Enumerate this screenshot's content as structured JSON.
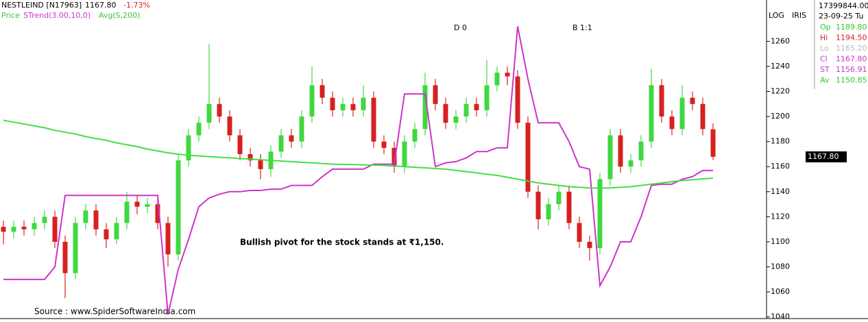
{
  "chart_data": {
    "type": "candlestick",
    "title": "NESTLEIND [N17963]",
    "last_price": "1167.80",
    "change": "-1.73%",
    "legend": [
      "Price",
      "STrend(3.00,10,0)",
      "Avg(S,200)"
    ],
    "markers": [
      "D 0",
      "B 1:1"
    ],
    "scale_labels": [
      "LOG",
      "IRIS"
    ],
    "annotation": "Bullish pivot for the stock stands at ₹1,150.",
    "source": "Source : www.SpiderSoftwareIndia.com",
    "price_tag": "1167.80",
    "info_panel": {
      "volume": "17399844.00",
      "date": "23-09-25 Tu",
      "rows": [
        [
          "Op",
          "1189.80"
        ],
        [
          "Hi",
          "1194.50"
        ],
        [
          "Lo",
          "1165.20"
        ],
        [
          "Cl",
          "1167.80"
        ],
        [
          "ST",
          "1156.91"
        ],
        [
          "Av",
          "1150.85"
        ]
      ]
    },
    "ylim": [
      1036,
      1293
    ],
    "yticks": [
      1040,
      1060,
      1080,
      1100,
      1120,
      1140,
      1160,
      1180,
      1200,
      1220,
      1240,
      1260
    ],
    "up_color": "#3fd83f",
    "down_color": "#d82020",
    "open": [
      1112,
      1108,
      1112,
      1110,
      1115,
      1120,
      1100,
      1075,
      1115,
      1125,
      1110,
      1102,
      1115,
      1132,
      1128,
      1130,
      1115,
      1090,
      1165,
      1185,
      1195,
      1210,
      1200,
      1185,
      1170,
      1165,
      1158,
      1172,
      1185,
      1180,
      1200,
      1225,
      1215,
      1205,
      1210,
      1205,
      1215,
      1180,
      1175,
      1160,
      1180,
      1190,
      1225,
      1210,
      1195,
      1200,
      1210,
      1205,
      1225,
      1235,
      1232,
      1195,
      1140,
      1118,
      1130,
      1140,
      1115,
      1100,
      1095,
      1150,
      1185,
      1160,
      1165,
      1180,
      1225,
      1200,
      1190,
      1215,
      1210,
      1189.8
    ],
    "high": [
      1117,
      1117,
      1117,
      1120,
      1125,
      1125,
      1105,
      1120,
      1130,
      1130,
      1115,
      1120,
      1140,
      1137,
      1135,
      1135,
      1120,
      1170,
      1190,
      1200,
      1258,
      1215,
      1205,
      1190,
      1175,
      1170,
      1177,
      1190,
      1190,
      1205,
      1240,
      1230,
      1220,
      1215,
      1215,
      1225,
      1220,
      1185,
      1180,
      1185,
      1195,
      1235,
      1230,
      1215,
      1205,
      1215,
      1215,
      1245,
      1240,
      1240,
      1237,
      1200,
      1145,
      1135,
      1145,
      1145,
      1120,
      1105,
      1155,
      1190,
      1190,
      1170,
      1185,
      1238,
      1230,
      1205,
      1225,
      1220,
      1215,
      1194.5
    ],
    "low": [
      1098,
      1103,
      1105,
      1105,
      1110,
      1095,
      1055,
      1070,
      1110,
      1105,
      1095,
      1098,
      1110,
      1122,
      1123,
      1110,
      1080,
      1085,
      1160,
      1180,
      1190,
      1195,
      1180,
      1165,
      1160,
      1150,
      1152,
      1167,
      1175,
      1175,
      1195,
      1210,
      1200,
      1200,
      1200,
      1200,
      1175,
      1170,
      1155,
      1155,
      1175,
      1185,
      1205,
      1190,
      1190,
      1195,
      1200,
      1200,
      1220,
      1225,
      1190,
      1135,
      1110,
      1113,
      1125,
      1110,
      1095,
      1085,
      1090,
      1145,
      1155,
      1155,
      1160,
      1175,
      1195,
      1185,
      1185,
      1205,
      1185,
      1165.2
    ],
    "close": [
      1108,
      1112,
      1110,
      1115,
      1120,
      1100,
      1075,
      1115,
      1125,
      1110,
      1102,
      1115,
      1132,
      1128,
      1130,
      1115,
      1090,
      1165,
      1185,
      1195,
      1210,
      1200,
      1185,
      1170,
      1165,
      1158,
      1172,
      1185,
      1180,
      1200,
      1225,
      1215,
      1205,
      1210,
      1205,
      1215,
      1180,
      1175,
      1160,
      1180,
      1190,
      1225,
      1210,
      1195,
      1200,
      1210,
      1205,
      1225,
      1235,
      1232,
      1195,
      1140,
      1118,
      1130,
      1140,
      1115,
      1100,
      1095,
      1150,
      1185,
      1160,
      1165,
      1180,
      1225,
      1200,
      1190,
      1215,
      1210,
      1190,
      1167.8
    ],
    "series": [
      {
        "name": "STrend(3.00,10,0)",
        "color": "#cc33cc",
        "values": [
          1070,
          1070,
          1070,
          1070,
          1070,
          1080,
          1137,
          1137,
          1137,
          1137,
          1137,
          1137,
          1137,
          1137,
          1137,
          1137,
          1042,
          1078,
          1102,
          1128,
          1135,
          1138,
          1140,
          1140,
          1141,
          1141,
          1142,
          1142,
          1145,
          1145,
          1145,
          1152,
          1158,
          1158,
          1158,
          1158,
          1162,
          1162,
          1162,
          1218,
          1218,
          1218,
          1160,
          1163,
          1164,
          1167,
          1172,
          1172,
          1175,
          1175,
          1272,
          1230,
          1195,
          1195,
          1195,
          1180,
          1160,
          1158,
          1065,
          1080,
          1100,
          1100,
          1120,
          1145,
          1146,
          1146,
          1150,
          1152,
          1157,
          1156.91
        ]
      },
      {
        "name": "Avg(S,200)",
        "color": "#44dd44",
        "values": [
          1197,
          1195.5,
          1194,
          1192.5,
          1191,
          1189,
          1187.5,
          1186,
          1184,
          1182.5,
          1181,
          1179,
          1177.5,
          1176,
          1174,
          1172.5,
          1171,
          1170,
          1169,
          1168.5,
          1168,
          1167.5,
          1167,
          1166.5,
          1166,
          1165.5,
          1165,
          1164.5,
          1164,
          1163.5,
          1163,
          1162.5,
          1162,
          1161.8,
          1161.6,
          1161.4,
          1161.2,
          1161,
          1160.5,
          1160,
          1159.5,
          1159,
          1158.5,
          1158,
          1157,
          1156,
          1155,
          1154,
          1153,
          1151.5,
          1150,
          1148.5,
          1147,
          1146,
          1145,
          1144,
          1143.5,
          1143,
          1143,
          1143,
          1143.5,
          1144,
          1145,
          1146,
          1147,
          1148,
          1149,
          1149.5,
          1150.2,
          1150.85
        ]
      }
    ]
  }
}
